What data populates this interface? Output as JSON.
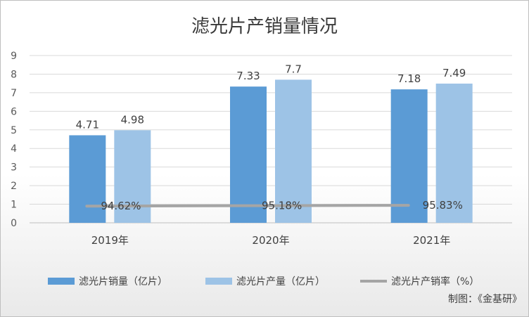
{
  "chart_data": {
    "type": "bar",
    "title": "滤光片产销量情况",
    "categories": [
      "2019年",
      "2020年",
      "2021年"
    ],
    "ylim": [
      0,
      9
    ],
    "yticks": [
      0,
      1,
      2,
      3,
      4,
      5,
      6,
      7,
      8,
      9
    ],
    "grid": true,
    "legend_position": "bottom",
    "series": [
      {
        "name": "滤光片销量（亿片）",
        "type": "bar",
        "color": "#5b9bd5",
        "values": [
          4.71,
          7.33,
          7.18
        ],
        "labels": [
          "4.71",
          "7.33",
          "7.18"
        ]
      },
      {
        "name": "滤光片产量（亿片）",
        "type": "bar",
        "color": "#9dc3e6",
        "values": [
          4.98,
          7.7,
          7.49
        ],
        "labels": [
          "4.98",
          "7.7",
          "7.49"
        ]
      },
      {
        "name": "滤光片产销率（%）",
        "type": "line",
        "color": "#a5a5a5",
        "values": [
          94.62,
          95.18,
          95.83
        ],
        "labels": [
          "94.62%",
          "95.18%",
          "95.83%"
        ]
      }
    ]
  },
  "credit": "制图：《金基研》"
}
